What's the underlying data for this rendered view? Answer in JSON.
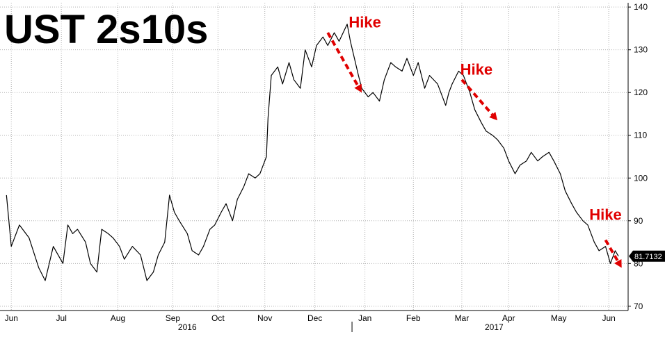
{
  "chart_data": {
    "type": "line",
    "title": "UST 2s10s",
    "series": [
      {
        "name": "",
        "color": "#000000",
        "points": [
          [
            "2016-05-31",
            96
          ],
          [
            "2016-06-03",
            84
          ],
          [
            "2016-06-08",
            89
          ],
          [
            "2016-06-14",
            86
          ],
          [
            "2016-06-20",
            79
          ],
          [
            "2016-06-24",
            76
          ],
          [
            "2016-06-29",
            84
          ],
          [
            "2016-07-05",
            80
          ],
          [
            "2016-07-08",
            89
          ],
          [
            "2016-07-11",
            87
          ],
          [
            "2016-07-14",
            88
          ],
          [
            "2016-07-19",
            85
          ],
          [
            "2016-07-22",
            80
          ],
          [
            "2016-07-26",
            78
          ],
          [
            "2016-07-29",
            88
          ],
          [
            "2016-08-02",
            87
          ],
          [
            "2016-08-05",
            86
          ],
          [
            "2016-08-09",
            84
          ],
          [
            "2016-08-12",
            81
          ],
          [
            "2016-08-17",
            84
          ],
          [
            "2016-08-22",
            82
          ],
          [
            "2016-08-26",
            76
          ],
          [
            "2016-08-30",
            78
          ],
          [
            "2016-09-02",
            82
          ],
          [
            "2016-09-06",
            85
          ],
          [
            "2016-09-09",
            96
          ],
          [
            "2016-09-12",
            92
          ],
          [
            "2016-09-15",
            90
          ],
          [
            "2016-09-20",
            87
          ],
          [
            "2016-09-23",
            83
          ],
          [
            "2016-09-27",
            82
          ],
          [
            "2016-09-30",
            84
          ],
          [
            "2016-10-04",
            88
          ],
          [
            "2016-10-07",
            89
          ],
          [
            "2016-10-11",
            92
          ],
          [
            "2016-10-14",
            94
          ],
          [
            "2016-10-18",
            90
          ],
          [
            "2016-10-21",
            95
          ],
          [
            "2016-10-25",
            98
          ],
          [
            "2016-10-28",
            101
          ],
          [
            "2016-11-01",
            100
          ],
          [
            "2016-11-04",
            101
          ],
          [
            "2016-11-08",
            105
          ],
          [
            "2016-11-09",
            114
          ],
          [
            "2016-11-11",
            124
          ],
          [
            "2016-11-15",
            126
          ],
          [
            "2016-11-18",
            122
          ],
          [
            "2016-11-22",
            127
          ],
          [
            "2016-11-25",
            123
          ],
          [
            "2016-11-29",
            121
          ],
          [
            "2016-12-02",
            130
          ],
          [
            "2016-12-06",
            126
          ],
          [
            "2016-12-09",
            131
          ],
          [
            "2016-12-13",
            133
          ],
          [
            "2016-12-16",
            131
          ],
          [
            "2016-12-20",
            134
          ],
          [
            "2016-12-23",
            132
          ],
          [
            "2016-12-28",
            136
          ],
          [
            "2016-12-30",
            132
          ],
          [
            "2017-01-04",
            124
          ],
          [
            "2017-01-06",
            121
          ],
          [
            "2017-01-10",
            119
          ],
          [
            "2017-01-13",
            120
          ],
          [
            "2017-01-17",
            118
          ],
          [
            "2017-01-20",
            123
          ],
          [
            "2017-01-24",
            127
          ],
          [
            "2017-01-27",
            126
          ],
          [
            "2017-01-31",
            125
          ],
          [
            "2017-02-03",
            128
          ],
          [
            "2017-02-07",
            124
          ],
          [
            "2017-02-10",
            127
          ],
          [
            "2017-02-14",
            121
          ],
          [
            "2017-02-17",
            124
          ],
          [
            "2017-02-22",
            122
          ],
          [
            "2017-02-27",
            117
          ],
          [
            "2017-03-01",
            120
          ],
          [
            "2017-03-03",
            122
          ],
          [
            "2017-03-07",
            125
          ],
          [
            "2017-03-10",
            124
          ],
          [
            "2017-03-14",
            120
          ],
          [
            "2017-03-17",
            116
          ],
          [
            "2017-03-21",
            113
          ],
          [
            "2017-03-24",
            111
          ],
          [
            "2017-03-28",
            110
          ],
          [
            "2017-03-31",
            109
          ],
          [
            "2017-04-04",
            107
          ],
          [
            "2017-04-07",
            104
          ],
          [
            "2017-04-11",
            101
          ],
          [
            "2017-04-14",
            103
          ],
          [
            "2017-04-18",
            104
          ],
          [
            "2017-04-21",
            106
          ],
          [
            "2017-04-25",
            104
          ],
          [
            "2017-04-28",
            105
          ],
          [
            "2017-05-02",
            106
          ],
          [
            "2017-05-05",
            104
          ],
          [
            "2017-05-09",
            101
          ],
          [
            "2017-05-12",
            97
          ],
          [
            "2017-05-16",
            94
          ],
          [
            "2017-05-19",
            92
          ],
          [
            "2017-05-23",
            90
          ],
          [
            "2017-05-26",
            89
          ],
          [
            "2017-05-30",
            85
          ],
          [
            "2017-06-02",
            83
          ],
          [
            "2017-06-06",
            84
          ],
          [
            "2017-06-09",
            80
          ],
          [
            "2017-06-12",
            83
          ],
          [
            "2017-06-14",
            81.7132
          ]
        ]
      }
    ],
    "x_range": [
      "2016-05-27",
      "2017-06-20"
    ],
    "ylim": [
      69,
      141
    ],
    "y_ticks": [
      70,
      80,
      90,
      100,
      110,
      120,
      130,
      140
    ],
    "x_ticks": [
      {
        "label": "Jun",
        "date": "2016-06-03"
      },
      {
        "label": "Jul",
        "date": "2016-07-04"
      },
      {
        "label": "Aug",
        "date": "2016-08-08"
      },
      {
        "label": "Sep",
        "date": "2016-09-11"
      },
      {
        "label": "Oct",
        "date": "2016-10-09"
      },
      {
        "label": "Nov",
        "date": "2016-11-07"
      },
      {
        "label": "Dec",
        "date": "2016-12-08"
      },
      {
        "label": "Jan",
        "date": "2017-01-08"
      },
      {
        "label": "Feb",
        "date": "2017-02-07"
      },
      {
        "label": "Mar",
        "date": "2017-03-09"
      },
      {
        "label": "Apr",
        "date": "2017-04-07"
      },
      {
        "label": "May",
        "date": "2017-05-08"
      },
      {
        "label": "Jun",
        "date": "2017-06-08"
      }
    ],
    "year_labels": [
      {
        "label": "2016",
        "date": "2016-09-20"
      },
      {
        "label": "2017",
        "date": "2017-03-29"
      }
    ],
    "year_divider": "2016-12-31",
    "y_axis_position": "right",
    "grid": "dotted",
    "last_value": "81.7132",
    "annotations": [
      {
        "text": "Hike",
        "text_date": "2016-12-29",
        "text_value": 136.5,
        "arrow_from": [
          "2016-12-16",
          134
        ],
        "arrow_to": [
          "2017-01-06",
          120
        ]
      },
      {
        "text": "Hike",
        "text_date": "2017-03-08",
        "text_value": 125.5,
        "arrow_from": [
          "2017-03-09",
          123
        ],
        "arrow_to": [
          "2017-03-31",
          113.5
        ]
      },
      {
        "text": "Hike",
        "text_date": "2017-05-27",
        "text_value": 91.5,
        "arrow_from": [
          "2017-06-06",
          85.5
        ],
        "arrow_to": [
          "2017-06-16",
          79
        ]
      }
    ],
    "colors": {
      "line": "#000000",
      "annotation": "#e00000",
      "grid": "#b0b0b0",
      "last_value_badge": "#000000",
      "last_value_text": "#ffffff"
    }
  }
}
